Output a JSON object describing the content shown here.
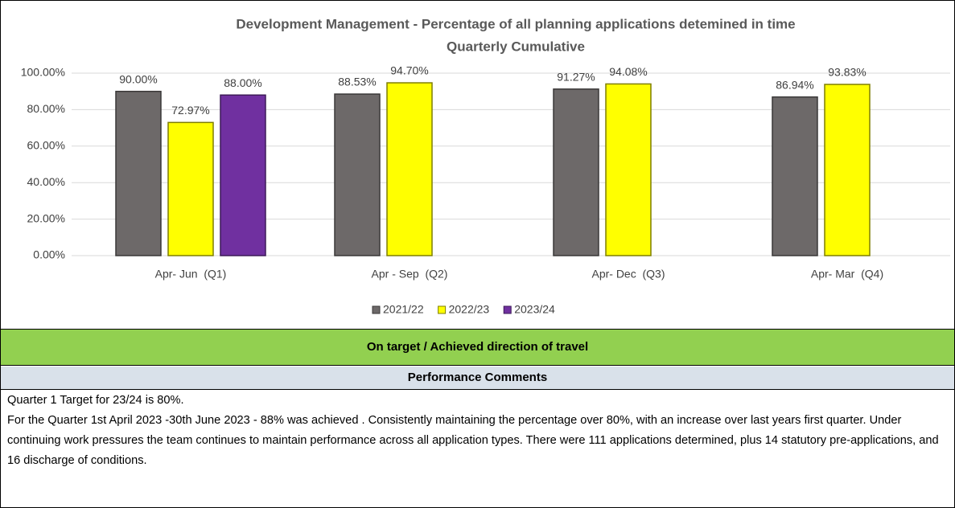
{
  "chart_data": {
    "type": "bar",
    "title": "Development Management - Percentage of all planning applications detemined in time",
    "subtitle": "Quarterly Cumulative",
    "categories": [
      "Apr- Jun  (Q1)",
      "Apr - Sep  (Q2)",
      "Apr- Dec  (Q3)",
      "Apr- Mar  (Q4)"
    ],
    "series": [
      {
        "name": "2021/22",
        "color": "#6d6969",
        "values": [
          90,
          88.53,
          91.27,
          86.94
        ],
        "value_labels": [
          "90.00%",
          "88.53%",
          "91.27%",
          "86.94%"
        ]
      },
      {
        "name": "2022/23",
        "color": "#ffff00",
        "values": [
          72.97,
          94.7,
          94.08,
          93.83
        ],
        "value_labels": [
          "72.97%",
          "94.70%",
          "94.08%",
          "93.83%"
        ]
      },
      {
        "name": "2023/24",
        "color": "#7030a0",
        "values": [
          88,
          null,
          null,
          null
        ],
        "value_labels": [
          "88.00%",
          null,
          null,
          null
        ]
      }
    ],
    "ylim": [
      0,
      100
    ],
    "yticks": [
      {
        "value": 0,
        "label": "0.00%"
      },
      {
        "value": 20,
        "label": "20.00%"
      },
      {
        "value": 40,
        "label": "40.00%"
      },
      {
        "value": 60,
        "label": "60.00%"
      },
      {
        "value": 80,
        "label": "80.00%"
      },
      {
        "value": 100,
        "label": "100.00%"
      }
    ],
    "grid": true,
    "legend": "bottom"
  },
  "status": "On target / Achieved direction of travel",
  "comments": {
    "heading": "Performance Comments",
    "paragraphs": [
      "Quarter 1 Target for 23/24 is 80%.",
      "For the Quarter 1st April 2023 -30th June 2023 - 88% was achieved . Consistently maintaining the percentage over 80%, with an increase over last years first quarter. Under continuing work pressures the team continues to maintain performance across all application types.  There were 111 applications determined, plus 14 statutory pre-applications, and 16 discharge of conditions."
    ]
  }
}
